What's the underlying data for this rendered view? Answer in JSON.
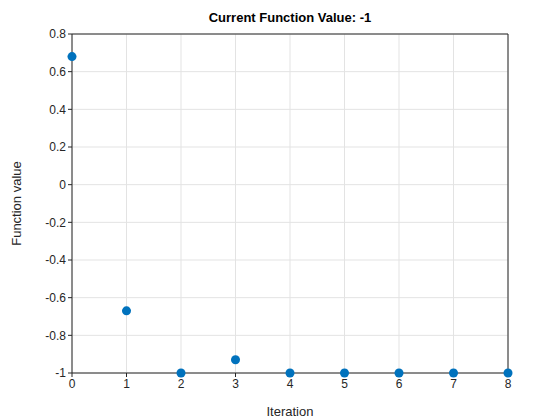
{
  "chart_data": {
    "type": "scatter",
    "title": "Current Function Value: -1",
    "x_label": "Iteration",
    "y_label": "Function value",
    "x": [
      0,
      1,
      2,
      3,
      4,
      5,
      6,
      7,
      8
    ],
    "values": [
      0.68,
      -0.67,
      -1,
      -0.93,
      -1,
      -1,
      -1,
      -1,
      -1
    ],
    "color": "#0072bd",
    "marker": "circle",
    "xlim": [
      0,
      8
    ],
    "xticks": [
      0,
      1,
      2,
      3,
      4,
      5,
      6,
      7,
      8
    ],
    "ylim": [
      -1,
      0.8
    ],
    "yticks": [
      -1,
      -0.8,
      -0.6,
      -0.4,
      -0.2,
      0,
      0.2,
      0.4,
      0.6,
      0.8
    ],
    "grid": true
  }
}
